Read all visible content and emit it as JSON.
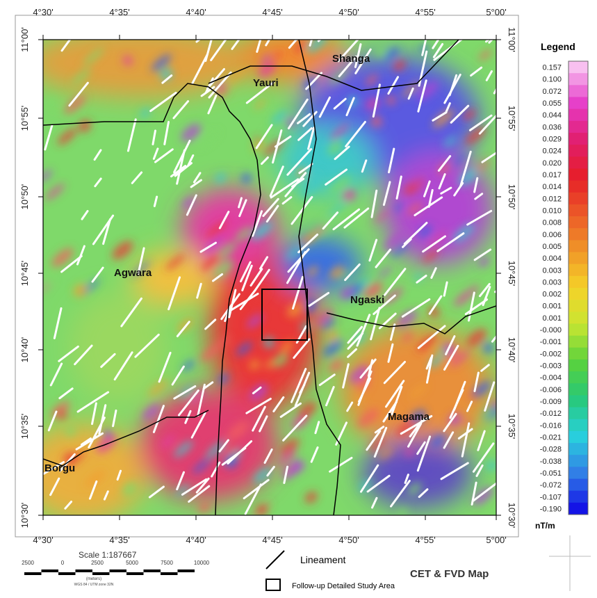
{
  "longitude_labels": [
    "4°30'",
    "4°35'",
    "4°40'",
    "4°45'",
    "4°50'",
    "4°55'",
    "5°00'"
  ],
  "latitude_labels": [
    "11°00'",
    "10°55'",
    "10°50'",
    "10°45'",
    "10°40'",
    "10°35'",
    "10°30'"
  ],
  "places": {
    "shanga": "Shanga",
    "yauri": "Yauri",
    "agwara": "Agwara",
    "ngaski": "Ngaski",
    "magama": "Magama",
    "borgu": "Borgu"
  },
  "legend": {
    "title": "Legend",
    "values": [
      "0.157",
      "0.100",
      "0.072",
      "0.055",
      "0.044",
      "0.036",
      "0.029",
      "0.024",
      "0.020",
      "0.017",
      "0.014",
      "0.012",
      "0.010",
      "0.008",
      "0.006",
      "0.005",
      "0.004",
      "0.003",
      "0.003",
      "0.002",
      "0.001",
      "0.001",
      "-0.000",
      "-0.001",
      "-0.002",
      "-0.003",
      "-0.004",
      "-0.006",
      "-0.009",
      "-0.012",
      "-0.016",
      "-0.021",
      "-0.028",
      "-0.038",
      "-0.051",
      "-0.072",
      "-0.107",
      "-0.190"
    ],
    "unit": "nT/m"
  },
  "scale": {
    "text": "Scale 1:187667",
    "labels": [
      "2500",
      "0",
      "2500",
      "5000",
      "7500",
      "10000"
    ],
    "unit": "(meters)",
    "projection": "WGS 84 / UTM zone 32N"
  },
  "key": {
    "lineament": "Lineament",
    "study_area": "Follow-up Detailed Study Area"
  },
  "map_title": "CET & FVD Map"
}
